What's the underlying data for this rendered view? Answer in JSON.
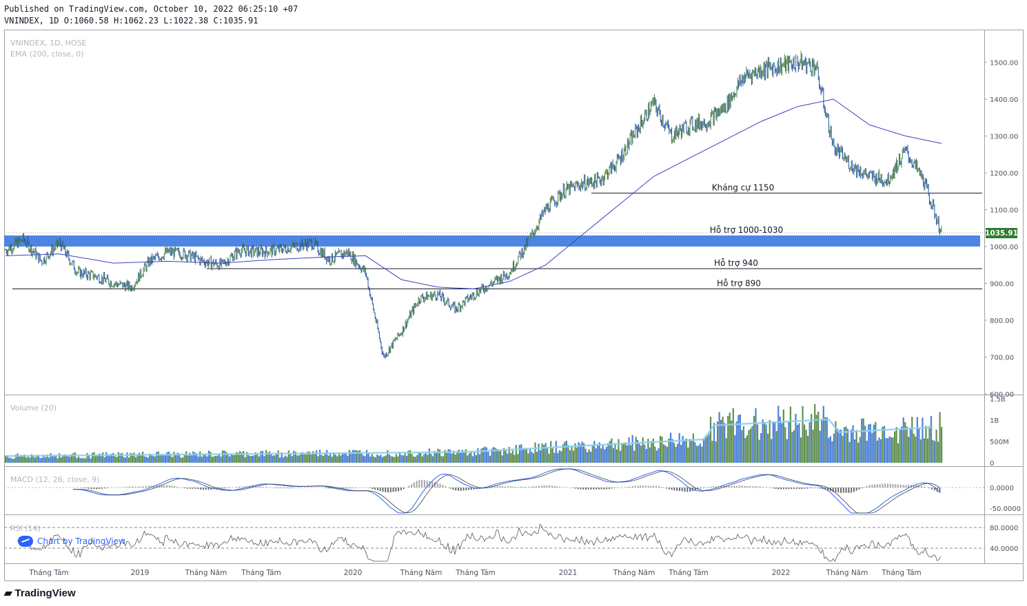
{
  "header": {
    "published": "Published on TradingView.com, October 10, 2022 06:25:10 +07",
    "ohlc": "VNINDEX, 1D O:1060.58 H:1062.23 L:1022.38 C:1035.91"
  },
  "legend": {
    "symbol": "VNINDEX, 1D, HOSE",
    "ema": "EMA (200, close, 0)",
    "volume": "Volume (20)",
    "macd": "MACD (12, 26, close, 9)",
    "rsi": "RSI (14)"
  },
  "watermark": "Chart by TradingView",
  "brand": "TradingView",
  "colors": {
    "up": "#4a7f3a",
    "down": "#2451a6",
    "ema": "#3a3fbf",
    "zone": "#3b78e0",
    "price_tag": "#2e7d32",
    "vol_ma": "#8fd0ef"
  },
  "chart_data": [
    {
      "type": "line",
      "title": "VNINDEX, 1D, HOSE",
      "ylim": [
        600,
        1560
      ],
      "yticks": [
        "1500.00",
        "1400.00",
        "1300.00",
        "1200.00",
        "1100.00",
        "1000.00",
        "900.00",
        "800.00",
        "700.00",
        "600.00"
      ],
      "x_labels": [
        "Tháng Tám",
        "2019",
        "Tháng Năm",
        "Tháng Tám",
        "2020",
        "Tháng Năm",
        "Tháng Tám",
        "2021",
        "Tháng Năm",
        "Tháng Tám",
        "2022",
        "Tháng Năm",
        "Tháng Tám"
      ],
      "last_price": "1035.91",
      "series": [
        {
          "name": "VNINDEX",
          "x": [
            "2018-06",
            "2018-07",
            "2018-08",
            "2018-09",
            "2018-10",
            "2018-11",
            "2018-12",
            "2019-01",
            "2019-02",
            "2019-03",
            "2019-04",
            "2019-05",
            "2019-06",
            "2019-07",
            "2019-08",
            "2019-09",
            "2019-10",
            "2019-11",
            "2019-12",
            "2020-01",
            "2020-02",
            "2020-03",
            "2020-04",
            "2020-05",
            "2020-06",
            "2020-07",
            "2020-08",
            "2020-09",
            "2020-10",
            "2020-11",
            "2020-12",
            "2021-01",
            "2021-02",
            "2021-03",
            "2021-04",
            "2021-05",
            "2021-06",
            "2021-07",
            "2021-08",
            "2021-09",
            "2021-10",
            "2021-11",
            "2021-12",
            "2022-01",
            "2022-02",
            "2022-03",
            "2022-04",
            "2022-05",
            "2022-06",
            "2022-07",
            "2022-08",
            "2022-09",
            "2022-10"
          ],
          "values": [
            990,
            1020,
            960,
            1010,
            930,
            920,
            900,
            890,
            960,
            985,
            980,
            960,
            950,
            990,
            985,
            990,
            1000,
            1010,
            965,
            985,
            930,
            700,
            770,
            860,
            870,
            830,
            870,
            900,
            930,
            1010,
            1100,
            1150,
            1170,
            1180,
            1230,
            1310,
            1390,
            1300,
            1330,
            1340,
            1380,
            1460,
            1480,
            1490,
            1500,
            1490,
            1270,
            1220,
            1190,
            1180,
            1260,
            1180,
            1035.91
          ]
        },
        {
          "name": "EMA (200, close, 0)",
          "x": [
            "2018-06",
            "2018-09",
            "2018-12",
            "2019-03",
            "2019-06",
            "2019-09",
            "2019-12",
            "2020-02",
            "2020-04",
            "2020-06",
            "2020-08",
            "2020-10",
            "2020-12",
            "2021-02",
            "2021-04",
            "2021-06",
            "2021-08",
            "2021-10",
            "2021-12",
            "2022-02",
            "2022-04",
            "2022-06",
            "2022-08",
            "2022-10"
          ],
          "values": [
            975,
            980,
            955,
            960,
            955,
            965,
            972,
            975,
            910,
            890,
            885,
            905,
            950,
            1030,
            1110,
            1190,
            1240,
            1290,
            1340,
            1380,
            1400,
            1330,
            1300,
            1280
          ]
        }
      ],
      "levels": [
        {
          "label": "Kháng cự 1150",
          "value": 1145
        },
        {
          "label": "Hỗ trợ 1000-1030",
          "low": 1000,
          "high": 1030
        },
        {
          "label": "Hỗ trợ 940",
          "value": 940
        },
        {
          "label": "Hỗ trợ 890",
          "value": 885
        }
      ]
    },
    {
      "type": "bar",
      "title": "Volume (20)",
      "yticks": [
        "1.5B",
        "1B",
        "500M",
        "0"
      ],
      "ylim": [
        0,
        1500
      ]
    },
    {
      "type": "line",
      "title": "MACD (12, 26, close, 9)",
      "yticks": [
        "0.0000",
        "-50.0000"
      ]
    },
    {
      "type": "line",
      "title": "RSI (14)",
      "yticks": [
        "80.0000",
        "40.0000"
      ]
    }
  ]
}
